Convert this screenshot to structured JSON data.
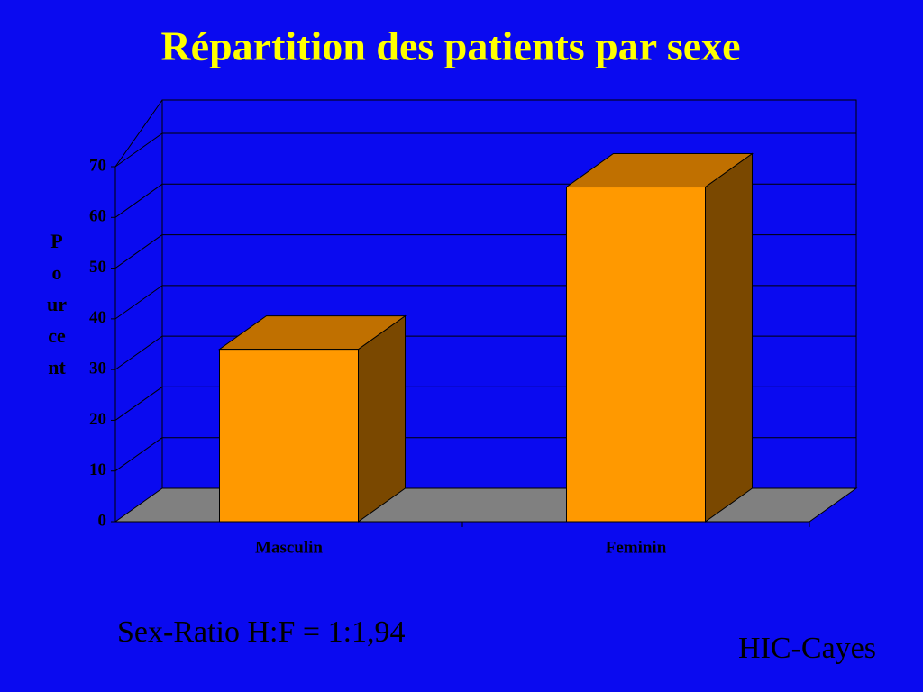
{
  "chart_data": {
    "type": "bar3d",
    "title": "Répartition des patients par sexe",
    "y_label": "Pourcent",
    "categories": [
      "Masculin",
      "Feminin"
    ],
    "values": [
      34,
      66
    ],
    "color": "#ff9900",
    "ylim": [
      0,
      70
    ],
    "yticks": [
      0,
      10,
      20,
      30,
      40,
      50,
      60,
      70
    ],
    "grid": true,
    "annotations": [
      "Sex-Ratio H:F = 1:1,94",
      "HIC-Cayes"
    ]
  }
}
